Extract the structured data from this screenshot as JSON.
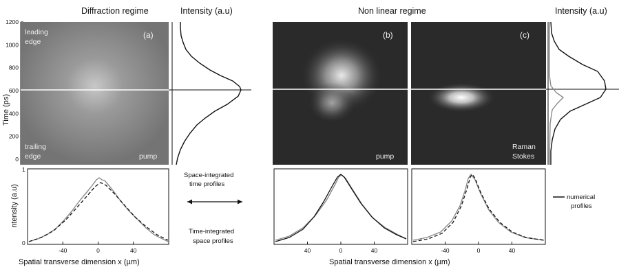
{
  "titles": {
    "diffraction": "Diffraction regime",
    "nonlinear": "Non linear regime",
    "intensity_a": "Intensity (a.u)",
    "intensity_c": "Intensity (a.u)"
  },
  "axes": {
    "time_label": "Time (ps)",
    "time_ticks": [
      "1200",
      "1000",
      "800",
      "600",
      "400",
      "200",
      "0"
    ],
    "intensity_label": "ntensity (a.u)",
    "intensity_ticks": [
      "1",
      "0"
    ],
    "space_label_left": "Spatial transverse dimension x (µm)",
    "space_label_right": "Spatial transverse dimension x (µm)"
  },
  "panels": {
    "a": {
      "tag": "(a)",
      "top_left": "leading",
      "top_left2": "edge",
      "bottom_left": "trailing",
      "bottom_left2": "edge",
      "bottom_right": "pump"
    },
    "b": {
      "tag": "(b)",
      "bottom_right": "pump"
    },
    "c": {
      "tag": "(c)",
      "bottom_right": "Raman",
      "bottom_right2": "Stokes"
    }
  },
  "x_ticks": {
    "a": [
      "-40",
      "0",
      "40"
    ],
    "b": [
      "40",
      "0",
      "40"
    ],
    "c": [
      "-40",
      "0",
      "40"
    ]
  },
  "annotations": {
    "space_integrated_1": "Space-integrated",
    "space_integrated_2": "time profiles",
    "time_integrated_1": "Time-integrated",
    "time_integrated_2": "space profiles",
    "legend_1": "numerical",
    "legend_2": "profiles"
  },
  "colors": {
    "image_a": "#777777",
    "image_dark": "#2a2a2a",
    "exp_curve": "#8a8a8a",
    "num_curve": "#111111"
  }
}
